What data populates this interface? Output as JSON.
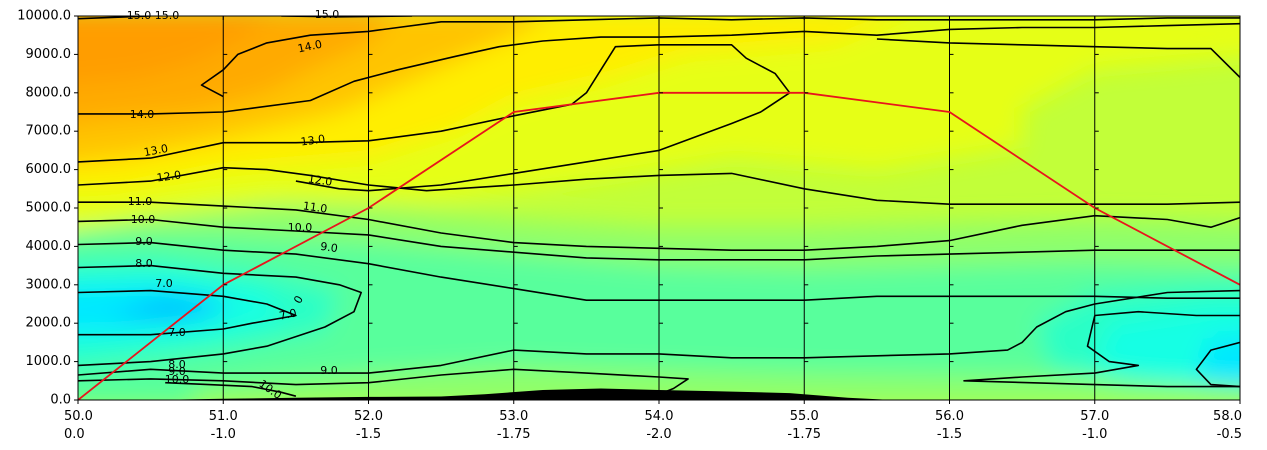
{
  "chart_data": {
    "type": "contour",
    "xlim": [
      50.0,
      58.0
    ],
    "ylim": [
      0.0,
      10000.0
    ],
    "x_ticks": [
      50.0,
      51.0,
      52.0,
      53.0,
      54.0,
      55.0,
      56.0,
      57.0,
      58.0
    ],
    "x_tick_labels_line1": [
      "50.0",
      "51.0",
      "52.0",
      "53.0",
      "54.0",
      "55.0",
      "56.0",
      "57.0",
      "58.0"
    ],
    "x_tick_labels_line2": [
      "0.0",
      "-1.0",
      "-1.5",
      "-1.75",
      "-2.0",
      "-1.75",
      "-1.5",
      "-1.0",
      "-0.5"
    ],
    "y_ticks": [
      0,
      1000,
      2000,
      3000,
      4000,
      5000,
      6000,
      7000,
      8000,
      9000,
      10000
    ],
    "y_tick_labels": [
      "0.0",
      "1000.0",
      "2000.0",
      "3000.0",
      "4000.0",
      "5000.0",
      "6000.0",
      "7000.0",
      "8000.0",
      "9000.0",
      "10000.0"
    ],
    "vertical_lines_x": [
      51.0,
      52.0,
      53.0,
      54.0,
      55.0,
      56.0,
      57.0
    ],
    "red_line": {
      "color": "#e8141c",
      "x": [
        50.0,
        51.0,
        52.0,
        53.0,
        54.0,
        55.0,
        56.0,
        57.0,
        58.0
      ],
      "y": [
        0,
        3000,
        5000,
        7500,
        8000,
        8000,
        7500,
        5000,
        3000
      ]
    },
    "contour_lines": [
      {
        "level": "15.0",
        "points": [
          [
            50.0,
            9930
          ],
          [
            50.5,
            10000
          ]
        ]
      },
      {
        "level": "15.0",
        "points": [
          [
            51.4,
            10000
          ],
          [
            51.8,
            9980
          ],
          [
            52.3,
            10000
          ]
        ]
      },
      {
        "level": "14.0",
        "points": [
          [
            50.0,
            7450
          ],
          [
            50.5,
            7450
          ],
          [
            51.0,
            7500
          ],
          [
            51.2,
            7600
          ],
          [
            51.6,
            7800
          ],
          [
            51.9,
            8300
          ],
          [
            52.2,
            8600
          ],
          [
            52.6,
            8950
          ],
          [
            52.9,
            9200
          ],
          [
            53.2,
            9350
          ],
          [
            53.6,
            9450
          ],
          [
            54.0,
            9450
          ],
          [
            54.5,
            9500
          ],
          [
            55.0,
            9600
          ],
          [
            55.5,
            9500
          ],
          [
            56.0,
            9650
          ],
          [
            56.5,
            9700
          ],
          [
            57.0,
            9700
          ],
          [
            57.5,
            9750
          ],
          [
            58.0,
            9800
          ]
        ]
      },
      {
        "level": "14.0",
        "points": [
          [
            51.0,
            7900
          ],
          [
            50.85,
            8200
          ],
          [
            51.0,
            8600
          ],
          [
            51.1,
            9000
          ],
          [
            51.3,
            9300
          ],
          [
            51.6,
            9500
          ],
          [
            52.0,
            9600
          ],
          [
            52.5,
            9850
          ],
          [
            53.0,
            9850
          ],
          [
            53.5,
            9900
          ],
          [
            54.0,
            9950
          ],
          [
            54.5,
            9900
          ],
          [
            55.0,
            9950
          ],
          [
            55.5,
            9900
          ],
          [
            56.0,
            9900
          ],
          [
            56.5,
            9900
          ],
          [
            57.0,
            9900
          ],
          [
            57.5,
            9950
          ],
          [
            58.0,
            9950
          ]
        ]
      },
      {
        "level": "13.0",
        "points": [
          [
            50.0,
            6200
          ],
          [
            50.5,
            6300
          ],
          [
            51.0,
            6700
          ],
          [
            51.5,
            6700
          ],
          [
            52.0,
            6750
          ],
          [
            52.5,
            7000
          ],
          [
            53.0,
            7400
          ],
          [
            53.4,
            7700
          ],
          [
            53.5,
            8000
          ],
          [
            53.7,
            9200
          ],
          [
            54.0,
            9250
          ],
          [
            54.5,
            9250
          ],
          [
            54.6,
            8900
          ],
          [
            54.8,
            8500
          ],
          [
            54.9,
            8000
          ],
          [
            54.7,
            7500
          ],
          [
            54.5,
            7200
          ],
          [
            54.0,
            6500
          ],
          [
            53.5,
            6200
          ],
          [
            53.0,
            5900
          ],
          [
            52.5,
            5600
          ],
          [
            52.0,
            5450
          ],
          [
            51.8,
            5500
          ],
          [
            51.5,
            5700
          ]
        ]
      },
      {
        "level": "13.0",
        "points": [
          [
            55.5,
            9400
          ],
          [
            56.0,
            9300
          ],
          [
            56.5,
            9250
          ],
          [
            57.0,
            9200
          ],
          [
            57.5,
            9150
          ],
          [
            57.8,
            9150
          ],
          [
            58.0,
            8400
          ]
        ]
      },
      {
        "level": "12.0",
        "points": [
          [
            50.0,
            5600
          ],
          [
            50.5,
            5700
          ],
          [
            51.0,
            6050
          ],
          [
            51.3,
            6000
          ],
          [
            51.6,
            5850
          ],
          [
            52.0,
            5600
          ],
          [
            52.4,
            5450
          ],
          [
            53.0,
            5600
          ],
          [
            53.5,
            5750
          ],
          [
            54.0,
            5850
          ],
          [
            54.5,
            5900
          ],
          [
            55.0,
            5500
          ],
          [
            55.5,
            5200
          ],
          [
            56.0,
            5100
          ],
          [
            56.5,
            5100
          ],
          [
            57.0,
            5100
          ],
          [
            57.5,
            5100
          ],
          [
            58.0,
            5150
          ]
        ]
      },
      {
        "level": "11.0",
        "points": [
          [
            50.0,
            5150
          ],
          [
            50.5,
            5150
          ],
          [
            51.0,
            5050
          ],
          [
            51.5,
            4950
          ],
          [
            52.0,
            4700
          ],
          [
            52.5,
            4350
          ],
          [
            53.0,
            4100
          ],
          [
            53.5,
            4000
          ],
          [
            54.0,
            3950
          ],
          [
            54.5,
            3900
          ],
          [
            55.0,
            3900
          ],
          [
            55.5,
            4000
          ],
          [
            56.0,
            4150
          ],
          [
            56.5,
            4550
          ],
          [
            57.0,
            4800
          ],
          [
            57.5,
            4700
          ],
          [
            57.8,
            4500
          ],
          [
            58.0,
            4750
          ]
        ]
      },
      {
        "level": "10.0",
        "points": [
          [
            50.0,
            4650
          ],
          [
            50.5,
            4700
          ],
          [
            51.0,
            4500
          ],
          [
            51.5,
            4400
          ],
          [
            52.0,
            4300
          ],
          [
            52.5,
            4000
          ],
          [
            53.0,
            3850
          ],
          [
            53.5,
            3700
          ],
          [
            54.0,
            3650
          ],
          [
            54.5,
            3650
          ],
          [
            55.0,
            3650
          ],
          [
            55.5,
            3750
          ],
          [
            56.0,
            3800
          ],
          [
            56.5,
            3850
          ],
          [
            57.0,
            3900
          ],
          [
            58.0,
            3900
          ]
        ]
      },
      {
        "level": "9.0",
        "points": [
          [
            50.0,
            4050
          ],
          [
            50.5,
            4100
          ],
          [
            51.0,
            3900
          ],
          [
            51.5,
            3800
          ],
          [
            52.0,
            3550
          ],
          [
            52.5,
            3200
          ],
          [
            53.0,
            2900
          ],
          [
            53.5,
            2600
          ],
          [
            54.0,
            2600
          ],
          [
            54.5,
            2600
          ],
          [
            55.0,
            2600
          ],
          [
            55.5,
            2700
          ],
          [
            56.0,
            2700
          ],
          [
            56.5,
            2700
          ],
          [
            57.0,
            2700
          ],
          [
            57.5,
            2650
          ],
          [
            58.0,
            2650
          ]
        ]
      },
      {
        "level": "8.0",
        "points": [
          [
            50.0,
            3450
          ],
          [
            50.5,
            3500
          ],
          [
            51.0,
            3300
          ],
          [
            51.5,
            3200
          ],
          [
            51.8,
            3000
          ],
          [
            51.95,
            2800
          ],
          [
            51.9,
            2300
          ],
          [
            51.7,
            1900
          ],
          [
            51.3,
            1400
          ],
          [
            51.0,
            1200
          ],
          [
            50.5,
            1000
          ],
          [
            50.0,
            900
          ]
        ]
      },
      {
        "level": "7.0",
        "points": [
          [
            50.0,
            2800
          ],
          [
            50.5,
            2850
          ],
          [
            51.0,
            2700
          ],
          [
            51.3,
            2500
          ],
          [
            51.5,
            2200
          ],
          [
            51.2,
            2000
          ],
          [
            51.0,
            1850
          ],
          [
            50.5,
            1700
          ],
          [
            50.0,
            1700
          ]
        ]
      },
      {
        "level": "8.0",
        "points": [
          [
            50.0,
            650
          ],
          [
            50.5,
            800
          ],
          [
            51.0,
            700
          ],
          [
            51.5,
            700
          ],
          [
            52.0,
            700
          ],
          [
            52.5,
            900
          ],
          [
            53.0,
            1300
          ],
          [
            53.5,
            1200
          ],
          [
            54.0,
            1200
          ],
          [
            54.5,
            1100
          ],
          [
            55.0,
            1100
          ],
          [
            55.5,
            1150
          ],
          [
            56.0,
            1200
          ],
          [
            56.4,
            1300
          ],
          [
            56.5,
            1500
          ],
          [
            56.6,
            1900
          ],
          [
            56.8,
            2300
          ],
          [
            57.0,
            2500
          ],
          [
            57.5,
            2800
          ],
          [
            58.0,
            2850
          ]
        ]
      },
      {
        "level": "9.0",
        "points": [
          [
            50.0,
            500
          ],
          [
            50.5,
            550
          ],
          [
            51.0,
            500
          ],
          [
            51.5,
            400
          ],
          [
            52.0,
            450
          ],
          [
            52.5,
            650
          ],
          [
            53.0,
            800
          ],
          [
            53.5,
            700
          ],
          [
            54.0,
            600
          ],
          [
            54.2,
            550
          ],
          [
            54.1,
            300
          ],
          [
            54.0,
            150
          ]
        ]
      },
      {
        "level": "10.0",
        "points": [
          [
            50.6,
            450
          ],
          [
            50.9,
            400
          ],
          [
            51.2,
            350
          ],
          [
            51.4,
            200
          ],
          [
            51.5,
            100
          ]
        ]
      },
      {
        "level": "9.0",
        "points": [
          [
            57.0,
            2200
          ],
          [
            57.3,
            2300
          ],
          [
            57.7,
            2200
          ],
          [
            58.0,
            2200
          ]
        ]
      },
      {
        "level": "9.0",
        "points": [
          [
            57.0,
            2200
          ],
          [
            56.95,
            1400
          ],
          [
            57.1,
            1000
          ],
          [
            57.3,
            900
          ],
          [
            57.0,
            700
          ],
          [
            56.5,
            600
          ],
          [
            56.1,
            500
          ],
          [
            57.0,
            400
          ],
          [
            57.5,
            350
          ],
          [
            58.0,
            350
          ]
        ]
      },
      {
        "level": "9.0",
        "points": [
          [
            58.0,
            1500
          ],
          [
            57.8,
            1300
          ],
          [
            57.7,
            800
          ],
          [
            57.8,
            400
          ],
          [
            58.0,
            350
          ]
        ]
      }
    ],
    "contour_label_texts": [
      "15.0",
      "15.0",
      "15.0",
      "14.0",
      "14.0",
      "13.0",
      "13.0",
      "12.0",
      "12.0",
      "11.0",
      "11.0",
      "10.0",
      "10.0",
      "9.0",
      "9.0",
      "8.0",
      "7.0",
      "7.0",
      "7.0",
      "0",
      "8.0",
      "9.0",
      "9.0",
      "10.0",
      "10.0"
    ],
    "fill_colors": {
      "dark_orange": "#ff9d00",
      "orange": "#ffaa00",
      "light_orange": "#ffc400",
      "yellow": "#ffee00",
      "yellow_green": "#e6ff14",
      "lime": "#c2ff39",
      "light_green": "#8fff6b",
      "green": "#58ff9c",
      "aqua_green": "#2bffc6",
      "cyan": "#12ffe4",
      "light_blue": "#00e8ff",
      "blue": "#00bfff",
      "terrain": "#000000"
    }
  }
}
